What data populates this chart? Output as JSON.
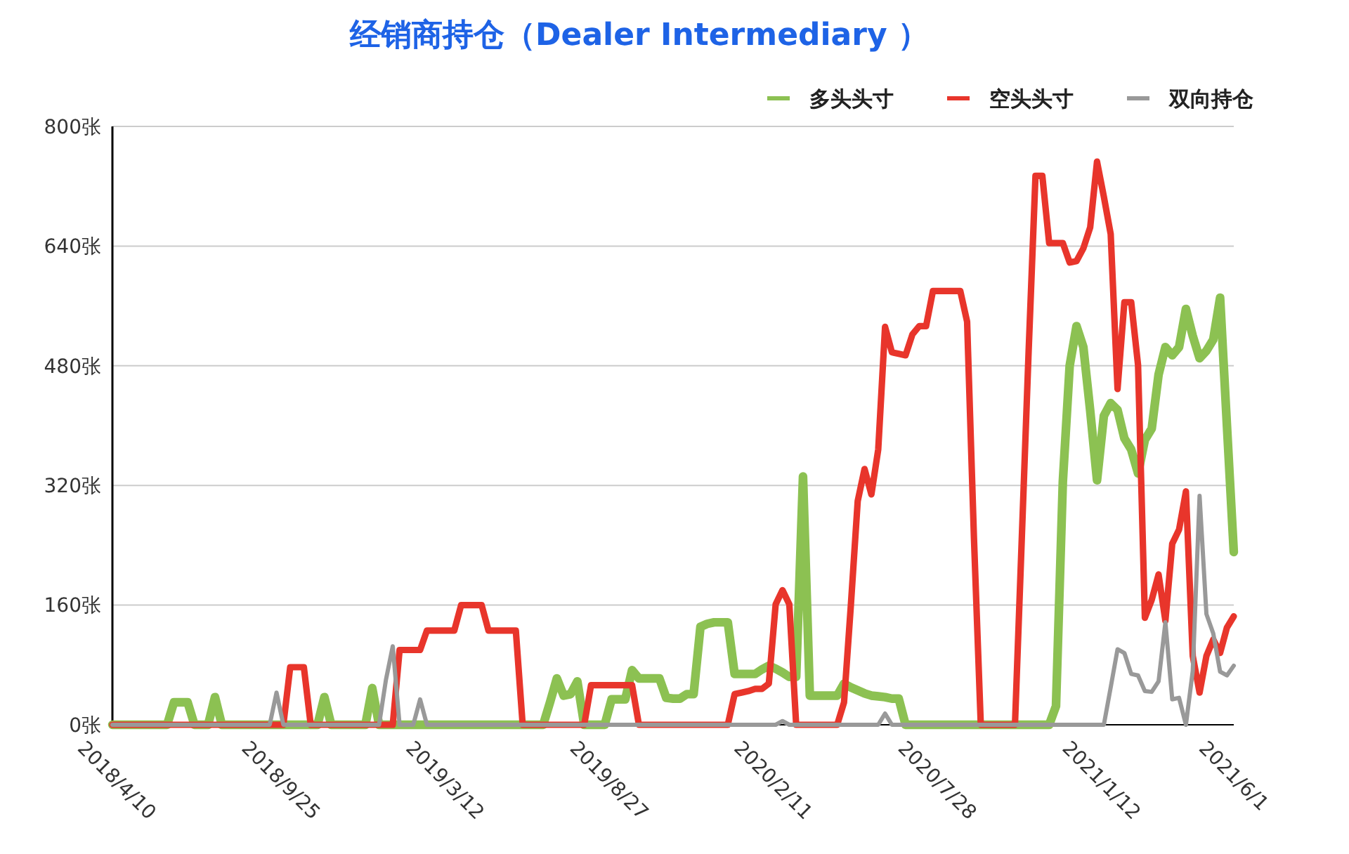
{
  "chart_data": {
    "type": "line",
    "title": "经销商持仓（Dealer Intermediary ）",
    "categories": [
      "2018/4/10",
      null,
      null,
      null,
      null,
      null,
      null,
      null,
      null,
      null,
      null,
      null,
      null,
      null,
      null,
      null,
      null,
      null,
      null,
      null,
      null,
      null,
      null,
      null,
      "2018/9/25",
      null,
      null,
      null,
      null,
      null,
      null,
      null,
      null,
      null,
      null,
      null,
      null,
      null,
      null,
      null,
      null,
      null,
      null,
      null,
      null,
      null,
      null,
      null,
      "2019/3/12",
      null,
      null,
      null,
      null,
      null,
      null,
      null,
      null,
      null,
      null,
      null,
      null,
      null,
      null,
      null,
      null,
      null,
      null,
      null,
      null,
      null,
      null,
      null,
      "2019/8/27",
      null,
      null,
      null,
      null,
      null,
      null,
      null,
      null,
      null,
      null,
      null,
      null,
      null,
      null,
      null,
      null,
      null,
      null,
      null,
      null,
      null,
      null,
      null,
      "2020/2/11",
      null,
      null,
      null,
      null,
      null,
      null,
      null,
      null,
      null,
      null,
      null,
      null,
      null,
      null,
      null,
      null,
      null,
      null,
      null,
      null,
      null,
      null,
      null,
      "2020/7/28",
      null,
      null,
      null,
      null,
      null,
      null,
      null,
      null,
      null,
      null,
      null,
      null,
      null,
      null,
      null,
      null,
      null,
      null,
      null,
      null,
      null,
      null,
      null,
      "2021/1/12",
      null,
      null,
      null,
      null,
      null,
      null,
      null,
      null,
      null,
      null,
      null,
      null,
      null,
      null,
      null,
      null,
      null,
      null,
      null,
      "2021/6/1"
    ],
    "series": [
      {
        "name": "多头头寸",
        "color": "#8cc152",
        "values": [
          0,
          0,
          0,
          0,
          0,
          0,
          0,
          0,
          0,
          30,
          30,
          30,
          0,
          0,
          0,
          37,
          0,
          0,
          0,
          0,
          0,
          0,
          0,
          0,
          0,
          0,
          0,
          0,
          0,
          0,
          0,
          37,
          0,
          0,
          0,
          0,
          0,
          0,
          49,
          0,
          0,
          0,
          0,
          0,
          0,
          0,
          0,
          0,
          0,
          0,
          0,
          0,
          0,
          0,
          0,
          0,
          0,
          0,
          0,
          0,
          0,
          0,
          0,
          0,
          30,
          62,
          39,
          41,
          58,
          0,
          0,
          0,
          0,
          34,
          34,
          34,
          73,
          62,
          62,
          62,
          62,
          36,
          35,
          35,
          41,
          41,
          131,
          135,
          137,
          137,
          137,
          68,
          68,
          68,
          68,
          74,
          79,
          75,
          70,
          64,
          64,
          332,
          39,
          39,
          39,
          39,
          39,
          55,
          50,
          46,
          42,
          39,
          38,
          37,
          35,
          35,
          0,
          0,
          0,
          0,
          0,
          0,
          0,
          0,
          0,
          0,
          0,
          0,
          0,
          0,
          0,
          0,
          0,
          0,
          0,
          0,
          0,
          0,
          25,
          325,
          480,
          533,
          505,
          420,
          327,
          413,
          430,
          421,
          383,
          368,
          336,
          381,
          396,
          468,
          505,
          494,
          505,
          556,
          520,
          490,
          500,
          515,
          571,
          400,
          231
        ]
      },
      {
        "name": "空头头寸",
        "color": "#e8352b",
        "values": [
          0,
          0,
          0,
          0,
          0,
          0,
          0,
          0,
          0,
          0,
          0,
          0,
          0,
          0,
          0,
          0,
          0,
          0,
          0,
          0,
          0,
          0,
          0,
          0,
          0,
          0,
          77,
          77,
          77,
          0,
          0,
          0,
          0,
          0,
          0,
          0,
          0,
          0,
          0,
          0,
          0,
          0,
          100,
          100,
          100,
          100,
          126,
          126,
          126,
          126,
          126,
          160,
          160,
          160,
          160,
          126,
          126,
          126,
          126,
          126,
          0,
          0,
          0,
          0,
          0,
          0,
          0,
          0,
          0,
          0,
          53,
          53,
          53,
          53,
          53,
          53,
          53,
          0,
          0,
          0,
          0,
          0,
          0,
          0,
          0,
          0,
          0,
          0,
          0,
          0,
          0,
          41,
          43,
          45,
          48,
          48,
          55,
          161,
          180,
          161,
          0,
          0,
          0,
          0,
          0,
          0,
          0,
          30,
          160,
          299,
          342,
          308,
          368,
          532,
          498,
          496,
          494,
          522,
          533,
          533,
          580,
          580,
          580,
          580,
          580,
          539,
          250,
          0,
          0,
          0,
          0,
          0,
          0,
          250,
          500,
          734,
          734,
          644,
          644,
          644,
          618,
          620,
          637,
          665,
          753,
          706,
          656,
          449,
          565,
          565,
          481,
          143,
          167,
          201,
          139,
          242,
          261,
          312,
          92,
          43,
          92,
          114,
          96,
          130,
          145
        ]
      },
      {
        "name": "双向持仓",
        "color": "#999999",
        "values": [
          0,
          0,
          0,
          0,
          0,
          0,
          0,
          0,
          0,
          0,
          0,
          0,
          0,
          0,
          0,
          0,
          0,
          0,
          0,
          0,
          0,
          0,
          0,
          0,
          43,
          0,
          0,
          0,
          0,
          0,
          0,
          0,
          0,
          0,
          0,
          0,
          0,
          0,
          0,
          0,
          60,
          105,
          0,
          0,
          0,
          34,
          0,
          0,
          0,
          0,
          0,
          0,
          0,
          0,
          0,
          0,
          0,
          0,
          0,
          0,
          0,
          0,
          0,
          0,
          0,
          0,
          0,
          0,
          0,
          0,
          0,
          0,
          0,
          0,
          0,
          0,
          0,
          0,
          0,
          0,
          0,
          0,
          0,
          0,
          0,
          0,
          0,
          0,
          0,
          0,
          0,
          0,
          0,
          0,
          0,
          0,
          0,
          0,
          5,
          0,
          0,
          0,
          0,
          0,
          0,
          0,
          0,
          0,
          0,
          0,
          0,
          0,
          0,
          15,
          0,
          0,
          0,
          0,
          0,
          0,
          0,
          0,
          0,
          0,
          0,
          0,
          0,
          0,
          0,
          0,
          0,
          0,
          0,
          0,
          0,
          0,
          0,
          0,
          0,
          0,
          0,
          0,
          0,
          0,
          0,
          0,
          50,
          101,
          96,
          68,
          66,
          45,
          44,
          58,
          137,
          34,
          36,
          0,
          72,
          306,
          148,
          122,
          71,
          66,
          79
        ]
      }
    ],
    "ylim": [
      0,
      800
    ],
    "yticks": [
      {
        "value": 0,
        "label": "0张"
      },
      {
        "value": 160,
        "label": "160张"
      },
      {
        "value": 320,
        "label": "320张"
      },
      {
        "value": 480,
        "label": "480张"
      },
      {
        "value": 640,
        "label": "640张"
      },
      {
        "value": 800,
        "label": "800张"
      }
    ],
    "grid": "y",
    "legend": "top right",
    "marker": "none",
    "line_style": "solid"
  }
}
